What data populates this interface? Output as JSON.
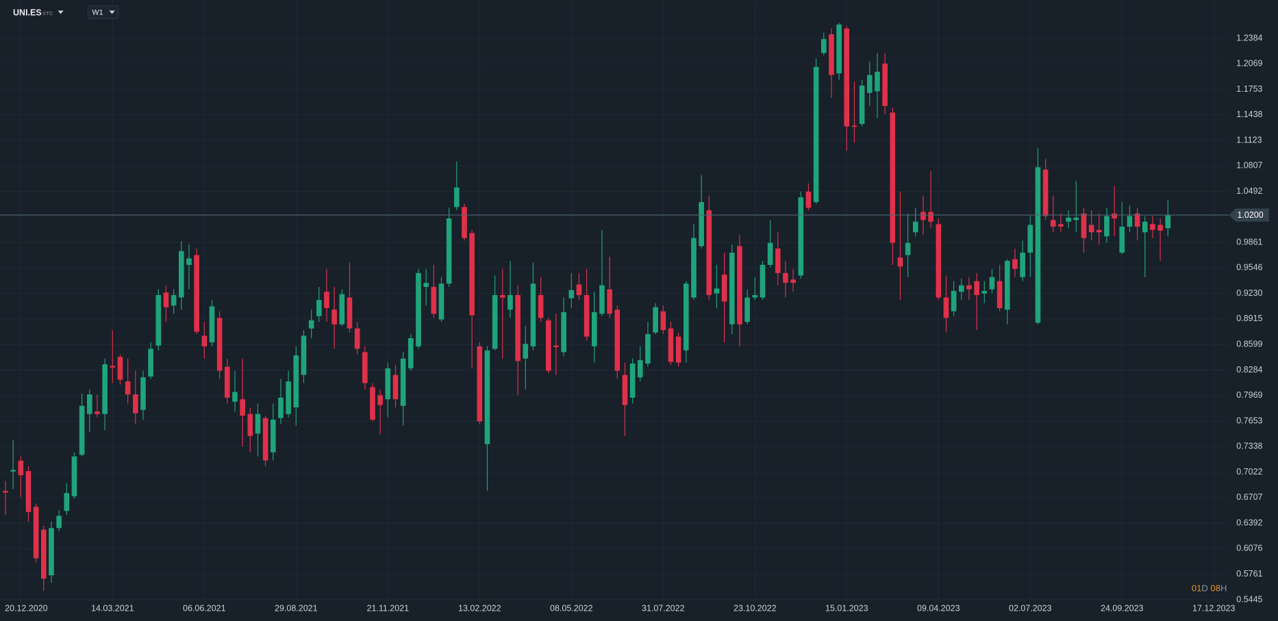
{
  "header": {
    "symbol": "UNI.ES",
    "symbol_suffix": "STC",
    "timeframe": "W1",
    "countdown": {
      "days": "01",
      "days_unit": "D",
      "hours": "08",
      "hours_unit": "H"
    }
  },
  "chart_data": {
    "type": "candlestick",
    "up_color": "#1fa47b",
    "down_color": "#e0314a",
    "grid": true,
    "x": [
      "06.12.2020",
      "13.12.2020",
      "20.12.2020",
      "27.12.2020",
      "03.01.2021",
      "10.01.2021",
      "17.01.2021",
      "24.01.2021",
      "31.01.2021",
      "07.02.2021",
      "14.02.2021",
      "21.02.2021",
      "28.02.2021",
      "07.03.2021",
      "14.03.2021",
      "21.03.2021",
      "28.03.2021",
      "04.04.2021",
      "11.04.2021",
      "18.04.2021",
      "25.04.2021",
      "02.05.2021",
      "09.05.2021",
      "16.05.2021",
      "23.05.2021",
      "30.05.2021",
      "06.06.2021",
      "13.06.2021",
      "20.06.2021",
      "27.06.2021",
      "04.07.2021",
      "11.07.2021",
      "18.07.2021",
      "25.07.2021",
      "01.08.2021",
      "08.08.2021",
      "15.08.2021",
      "22.08.2021",
      "29.08.2021",
      "05.09.2021",
      "12.09.2021",
      "19.09.2021",
      "26.09.2021",
      "03.10.2021",
      "10.10.2021",
      "17.10.2021",
      "24.10.2021",
      "31.10.2021",
      "07.11.2021",
      "14.11.2021",
      "21.11.2021",
      "28.11.2021",
      "05.12.2021",
      "12.12.2021",
      "19.12.2021",
      "26.12.2021",
      "02.01.2022",
      "09.01.2022",
      "16.01.2022",
      "23.01.2022",
      "30.01.2022",
      "06.02.2022",
      "13.02.2022",
      "20.02.2022",
      "27.02.2022",
      "06.03.2022",
      "13.03.2022",
      "20.03.2022",
      "27.03.2022",
      "03.04.2022",
      "10.04.2022",
      "17.04.2022",
      "24.04.2022",
      "01.05.2022",
      "08.05.2022",
      "15.05.2022",
      "22.05.2022",
      "29.05.2022",
      "05.06.2022",
      "12.06.2022",
      "19.06.2022",
      "26.06.2022",
      "03.07.2022",
      "10.07.2022",
      "17.07.2022",
      "24.07.2022",
      "31.07.2022",
      "07.08.2022",
      "14.08.2022",
      "21.08.2022",
      "28.08.2022",
      "04.09.2022",
      "11.09.2022",
      "18.09.2022",
      "25.09.2022",
      "02.10.2022",
      "09.10.2022",
      "16.10.2022",
      "23.10.2022",
      "30.10.2022",
      "06.11.2022",
      "13.11.2022",
      "20.11.2022",
      "27.11.2022",
      "04.12.2022",
      "11.12.2022",
      "18.12.2022",
      "25.12.2022",
      "01.01.2023",
      "08.01.2023",
      "15.01.2023",
      "22.01.2023",
      "29.01.2023",
      "05.02.2023",
      "12.02.2023",
      "19.02.2023",
      "26.02.2023",
      "05.03.2023",
      "12.03.2023",
      "19.03.2023",
      "26.03.2023",
      "02.04.2023",
      "09.04.2023",
      "16.04.2023",
      "23.04.2023",
      "30.04.2023",
      "07.05.2023",
      "14.05.2023",
      "21.05.2023",
      "28.05.2023",
      "04.06.2023",
      "11.06.2023",
      "18.06.2023",
      "25.06.2023",
      "02.07.2023",
      "09.07.2023",
      "16.07.2023",
      "23.07.2023",
      "30.07.2023",
      "06.08.2023",
      "13.08.2023",
      "20.08.2023",
      "27.08.2023",
      "03.09.2023",
      "10.09.2023",
      "17.09.2023",
      "24.09.2023",
      "01.10.2023",
      "08.10.2023",
      "15.10.2023",
      "22.10.2023",
      "29.10.2023",
      "05.11.2023"
    ],
    "open": [
      0.679,
      0.703,
      0.7165,
      0.7035,
      0.6593,
      0.6311,
      0.5747,
      0.6331,
      0.6543,
      0.6724,
      0.7237,
      0.7741,
      0.7771,
      0.7741,
      0.8335,
      0.8446,
      0.8144,
      0.7983,
      0.7791,
      0.8204,
      0.8587,
      0.9242,
      0.9081,
      0.9181,
      0.9584,
      0.9705,
      0.8708,
      0.8627,
      0.8929,
      0.8325,
      0.7893,
      0.7923,
      0.7741,
      0.7499,
      0.7691,
      0.7268,
      0.7691,
      0.7741,
      0.7822,
      0.8224,
      0.8798,
      0.895,
      0.9252,
      0.903,
      0.8849,
      0.9181,
      0.8799,
      0.8506,
      0.8074,
      0.7973,
      0.7923,
      0.8224,
      0.7842,
      0.8305,
      0.8577,
      0.9312,
      0.9312,
      0.8909,
      0.9352,
      1.0299,
      1.0299,
      0.9977,
      0.8577,
      0.7368,
      0.8547,
      0.9211,
      0.903,
      0.9211,
      0.8426,
      0.8577,
      0.9211,
      0.8899,
      0.8587,
      0.8506,
      0.9171,
      0.9342,
      0.9211,
      0.8577,
      0.898,
      0.9282,
      0.903,
      0.8224,
      0.7943,
      0.8194,
      0.8365,
      0.8748,
      0.901,
      0.8798,
      0.8698,
      0.8527,
      0.9181,
      0.9816,
      1.0259,
      0.9231,
      0.9463,
      0.8849,
      0.9816,
      0.8879,
      0.9181,
      0.9181,
      0.9584,
      0.9786,
      0.9483,
      0.9403,
      0.9453,
      1.049,
      1.036,
      1.2203,
      1.2434,
      1.1951,
      1.2505,
      1.1306,
      1.1326,
      1.1709,
      1.1729,
      1.2072,
      1.1467,
      0.9675,
      0.9705,
      0.9987,
      1.0239,
      1.0239,
      1.0088,
      0.9181,
      0.901,
      0.9252,
      0.9332,
      0.9383,
      0.9231,
      0.9282,
      0.9383,
      0.903,
      0.9654,
      0.9433,
      0.9735,
      0.8869,
      1.0762,
      1.0138,
      1.0088,
      1.0118,
      1.0138,
      1.0219,
      1.0078,
      1.0017,
      0.9937,
      1.0219,
      0.9735,
      1.0057,
      1.0219,
      0.9987,
      1.0088,
      1.0078,
      1.0037
    ],
    "high": [
      0.6915,
      0.742,
      0.7217,
      0.7097,
      0.6633,
      0.6361,
      0.6412,
      0.6553,
      0.6885,
      0.7268,
      0.7993,
      0.8043,
      0.7983,
      0.8426,
      0.8778,
      0.8476,
      0.8426,
      0.8275,
      0.8275,
      0.8627,
      0.9282,
      0.9332,
      0.9282,
      0.9876,
      0.9836,
      0.9785,
      0.8879,
      0.9151,
      0.901,
      0.8426,
      0.8275,
      0.8426,
      0.7822,
      0.7872,
      0.7721,
      0.7872,
      0.8174,
      0.8275,
      0.8577,
      0.8778,
      0.903,
      0.9312,
      0.9534,
      0.9312,
      0.9282,
      0.9614,
      0.8879,
      0.8577,
      0.8124,
      0.8043,
      0.8376,
      0.8345,
      0.8506,
      0.8728,
      0.9534,
      0.9534,
      0.9584,
      0.9433,
      1.0289,
      1.0863,
      1.0339,
      1.0017,
      0.8627,
      0.8577,
      0.9453,
      0.9534,
      0.9634,
      0.9332,
      0.8829,
      0.9614,
      0.9433,
      0.8929,
      0.898,
      0.9181,
      0.9483,
      0.9483,
      0.9534,
      0.9252,
      1.0017,
      0.9685,
      0.9081,
      0.8376,
      0.8426,
      0.8577,
      0.8879,
      0.9111,
      0.9081,
      0.8879,
      0.8748,
      0.9383,
      1.0088,
      1.0692,
      1.044,
      0.9584,
      0.9735,
      0.9836,
      0.9956,
      0.9282,
      0.9433,
      0.9634,
      1.0138,
      0.9987,
      0.9634,
      0.9534,
      1.049,
      1.0591,
      1.2132,
      1.2454,
      1.2505,
      1.2575,
      1.2535,
      1.185,
      1.187,
      1.2102,
      1.2203,
      1.2203,
      1.1528,
      1.049,
      1.0219,
      1.0289,
      1.044,
      1.0742,
      1.0158,
      0.9453,
      0.9383,
      0.9413,
      0.9433,
      0.9483,
      0.9383,
      0.9534,
      0.9584,
      0.9654,
      0.9785,
      0.9886,
      1.0188,
      1.1024,
      1.0893,
      1.044,
      1.0219,
      1.0259,
      1.0621,
      1.0289,
      1.0259,
      1.0219,
      1.0289,
      1.056,
      1.036,
      1.0319,
      1.0289,
      1.0188,
      1.0188,
      1.0158,
      1.039
    ],
    "low": [
      0.649,
      0.6815,
      0.6714,
      0.6412,
      0.5908,
      0.5555,
      0.5656,
      0.6291,
      0.6492,
      0.6694,
      0.7217,
      0.7519,
      0.7701,
      0.754,
      0.8124,
      0.8104,
      0.7872,
      0.762,
      0.767,
      0.8174,
      0.8527,
      0.8879,
      0.898,
      0.903,
      0.9282,
      0.8728,
      0.8426,
      0.8577,
      0.8174,
      0.7872,
      0.7771,
      0.7338,
      0.7268,
      0.7217,
      0.7097,
      0.7167,
      0.762,
      0.7701,
      0.76,
      0.8124,
      0.8678,
      0.8879,
      0.8879,
      0.8547,
      0.8829,
      0.8748,
      0.8476,
      0.8043,
      0.765,
      0.7489,
      0.7701,
      0.7822,
      0.76,
      0.8275,
      0.8547,
      0.9081,
      0.8929,
      0.8879,
      0.9312,
      1.0259,
      0.9886,
      0.8305,
      0.762,
      0.6794,
      0.8527,
      0.8426,
      0.8929,
      0.7973,
      0.8043,
      0.8527,
      0.8879,
      0.8245,
      0.8224,
      0.8456,
      0.905,
      0.9151,
      0.8648,
      0.8376,
      0.895,
      0.8929,
      0.8174,
      0.7469,
      0.7872,
      0.8144,
      0.8325,
      0.8728,
      0.8728,
      0.8345,
      0.8325,
      0.8376,
      0.9151,
      0.9786,
      0.9151,
      0.905,
      0.8627,
      0.8728,
      0.8577,
      0.8849,
      0.9151,
      0.9151,
      0.9554,
      0.9332,
      0.9181,
      0.9252,
      0.9413,
      1.0259,
      1.0339,
      1.2172,
      1.1649,
      1.187,
      1.0994,
      1.1095,
      1.1296,
      1.1548,
      1.1397,
      1.1447,
      0.9584,
      0.9151,
      0.9433,
      0.9937,
      0.9956,
      1.0037,
      0.9151,
      0.8748,
      0.895,
      0.9151,
      0.9151,
      0.8778,
      0.9111,
      0.9231,
      0.901,
      0.8849,
      0.9433,
      0.9383,
      0.9433,
      0.8849,
      1.0138,
      0.9987,
      0.9987,
      1.0037,
      0.9987,
      0.9735,
      0.9886,
      0.9836,
      0.9856,
      0.9937,
      0.9715,
      0.9987,
      0.9886,
      0.9433,
      0.9916,
      0.9634,
      0.9937
    ],
    "close": [
      0.677,
      0.705,
      0.6985,
      0.653,
      0.5958,
      0.5707,
      0.6331,
      0.6482,
      0.6764,
      0.7217,
      0.7842,
      0.7983,
      0.7741,
      0.8355,
      0.8315,
      0.8164,
      0.7983,
      0.7751,
      0.8194,
      0.8547,
      0.9211,
      0.9061,
      0.9211,
      0.9755,
      0.9664,
      0.8758,
      0.8577,
      0.9071,
      0.8275,
      0.7943,
      0.8013,
      0.7721,
      0.7469,
      0.7741,
      0.7167,
      0.7671,
      0.7943,
      0.8144,
      0.8466,
      0.8708,
      0.8899,
      0.9151,
      0.905,
      0.8849,
      0.9222,
      0.8799,
      0.8547,
      0.8124,
      0.7671,
      0.7852,
      0.8305,
      0.7923,
      0.8426,
      0.8678,
      0.9483,
      0.9362,
      0.898,
      0.9352,
      1.0158,
      1.0541,
      0.9916,
      0.896,
      0.765,
      0.8527,
      0.9211,
      0.9181,
      0.9211,
      0.8396,
      0.8607,
      0.9352,
      0.8929,
      0.8275,
      0.8567,
      0.9,
      0.9272,
      0.9211,
      0.8698,
      0.9,
      0.9332,
      0.898,
      0.8275,
      0.7852,
      0.8365,
      0.8406,
      0.8728,
      0.9061,
      0.8778,
      0.8386,
      0.8376,
      0.9352,
      0.9916,
      1.036,
      0.9211,
      0.9292,
      0.9131,
      0.9735,
      0.8849,
      0.9181,
      0.9211,
      0.9584,
      0.9856,
      0.9483,
      0.9362,
      0.9362,
      1.042,
      1.0289,
      1.2031,
      1.2374,
      1.1931,
      1.2555,
      1.1296,
      1.1296,
      1.18,
      1.1931,
      1.1971,
      1.1548,
      0.9856,
      0.9564,
      0.9856,
      1.0118,
      1.0138,
      1.0118,
      0.9181,
      0.8929,
      0.9262,
      0.9332,
      0.9282,
      0.9211,
      0.9262,
      0.9433,
      0.905,
      0.9634,
      0.9534,
      0.9735,
      1.0078,
      1.0792,
      1.0188,
      1.0057,
      1.0057,
      1.0168,
      1.0168,
      0.9916,
      0.9987,
      0.9987,
      1.0188,
      1.0158,
      1.0057,
      1.0188,
      1.0057,
      1.0118,
      1.0017,
      1.0007,
      1.02
    ],
    "xlim": [
      "01.12.2020",
      "31.12.2023"
    ],
    "xticks": [
      "20.12.2020",
      "14.03.2021",
      "06.06.2021",
      "29.08.2021",
      "21.11.2021",
      "13.02.2022",
      "08.05.2022",
      "31.07.2022",
      "23.10.2022",
      "15.01.2023",
      "09.04.2023",
      "02.07.2023",
      "24.09.2023",
      "17.12.2023"
    ],
    "ylim": [
      0.5405,
      1.2857
    ],
    "yticks": [
      1.2384,
      1.2069,
      1.1753,
      1.1438,
      1.1123,
      1.0807,
      1.0492,
      0.9861,
      0.9546,
      {
        "value": 0.923,
        "label": "0.9230"
      },
      0.8915,
      0.8599,
      0.8284,
      0.7969,
      0.7653,
      0.7338,
      0.7022,
      0.6707,
      0.6392,
      0.6076,
      0.5761,
      0.5445
    ],
    "price_line": {
      "value": 1.02,
      "label": "1.0200"
    }
  }
}
